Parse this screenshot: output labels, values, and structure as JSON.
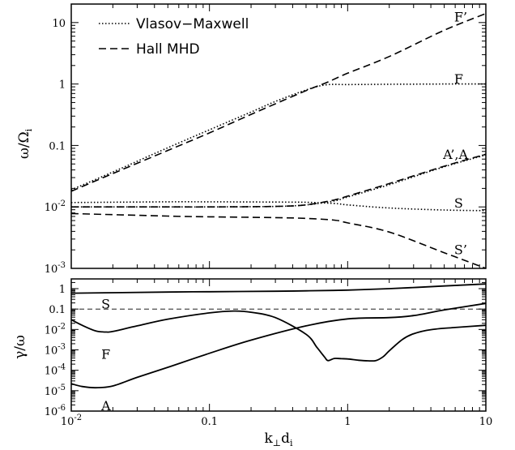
{
  "chart_data": [
    {
      "type": "line",
      "panel": "top",
      "xscale": "log",
      "yscale": "log",
      "xlim": [
        0.01,
        10
      ],
      "ylim": [
        0.001,
        20
      ],
      "ylabel": "ω/Ω",
      "ylabel_sub": "i",
      "yticks": [
        {
          "value": 10,
          "label": "10"
        },
        {
          "value": 1,
          "label": "1"
        },
        {
          "value": 0.1,
          "label": "0.1"
        },
        {
          "value": 0.01,
          "label": "10",
          "exp": "-2"
        },
        {
          "value": 0.001,
          "label": "10",
          "exp": "-3"
        }
      ],
      "legend": {
        "placement": "top-left",
        "entries": [
          {
            "label": "Vlasov−Maxwell",
            "style": "dotted"
          },
          {
            "label": "Hall MHD",
            "style": "dashed"
          }
        ]
      },
      "series": [
        {
          "style": "dotted",
          "x": [
            0.01,
            0.02,
            0.05,
            0.1,
            0.2,
            0.3,
            0.5,
            0.7,
            1,
            2,
            5,
            10
          ],
          "y": [
            0.019,
            0.037,
            0.092,
            0.18,
            0.35,
            0.52,
            0.8,
            0.97,
            0.98,
            0.99,
            1.0,
            1.0
          ]
        },
        {
          "style": "dashed",
          "x": [
            0.01,
            0.02,
            0.05,
            0.1,
            0.2,
            0.5,
            0.7,
            1,
            2,
            5,
            10
          ],
          "y": [
            0.018,
            0.035,
            0.083,
            0.16,
            0.32,
            0.78,
            1.05,
            1.5,
            2.8,
            7.5,
            14
          ]
        },
        {
          "style": "dotted",
          "x": [
            0.01,
            0.05,
            0.1,
            0.3,
            0.5,
            0.8,
            1,
            2,
            5,
            10
          ],
          "y": [
            0.01,
            0.01,
            0.01,
            0.0102,
            0.0108,
            0.0125,
            0.0145,
            0.023,
            0.045,
            0.07
          ]
        },
        {
          "style": "dashed",
          "x": [
            0.01,
            0.05,
            0.1,
            0.3,
            0.5,
            0.8,
            1,
            2,
            5,
            10
          ],
          "y": [
            0.01,
            0.01,
            0.01,
            0.0102,
            0.0108,
            0.013,
            0.015,
            0.024,
            0.046,
            0.072
          ]
        },
        {
          "style": "dotted",
          "x": [
            0.01,
            0.05,
            0.1,
            0.3,
            0.5,
            0.8,
            1,
            2,
            5,
            10
          ],
          "y": [
            0.0118,
            0.0121,
            0.0121,
            0.012,
            0.0119,
            0.0114,
            0.0108,
            0.0096,
            0.0089,
            0.0087
          ]
        },
        {
          "style": "dashed",
          "x": [
            0.01,
            0.05,
            0.1,
            0.3,
            0.5,
            0.8,
            1,
            2,
            5,
            10
          ],
          "y": [
            0.0078,
            0.0071,
            0.0069,
            0.0067,
            0.0065,
            0.0061,
            0.0055,
            0.0039,
            0.0018,
            0.001
          ]
        }
      ],
      "annotations": [
        {
          "text": "F’",
          "x": 5.9,
          "y": 12.5
        },
        {
          "text": "F",
          "x": 5.9,
          "y": 1.22
        },
        {
          "text": "A’,A",
          "x": 4.9,
          "y": 0.072
        },
        {
          "text": "S",
          "x": 5.9,
          "y": 0.0117
        },
        {
          "text": "S’",
          "x": 5.9,
          "y": 0.00205
        }
      ]
    },
    {
      "type": "line",
      "panel": "bottom",
      "xscale": "log",
      "yscale": "log",
      "xlim": [
        0.01,
        10
      ],
      "ylim": [
        1e-06,
        3
      ],
      "xlabel": "k",
      "xlabel_sub1": "⊥",
      "xlabel_mid": "d",
      "xlabel_sub2": "i",
      "ylabel": "γ/ω",
      "xticks": [
        {
          "value": 0.01,
          "label": "10",
          "exp": "-2"
        },
        {
          "value": 0.1,
          "label": "0.1"
        },
        {
          "value": 1,
          "label": "1"
        },
        {
          "value": 10,
          "label": "10"
        }
      ],
      "yticks": [
        {
          "value": 1,
          "label": "1"
        },
        {
          "value": 0.1,
          "label": "0.1"
        },
        {
          "value": 0.01,
          "label": "10",
          "exp": "-2"
        },
        {
          "value": 0.001,
          "label": "10",
          "exp": "-3"
        },
        {
          "value": 0.0001,
          "label": "10",
          "exp": "-4"
        },
        {
          "value": 1e-05,
          "label": "10",
          "exp": "-5"
        },
        {
          "value": 1e-06,
          "label": "10",
          "exp": "-6"
        }
      ],
      "reference_line": {
        "y": 0.1,
        "style": "thin-dashed"
      },
      "series": [
        {
          "name": "S",
          "x": [
            0.01,
            0.05,
            0.1,
            0.3,
            0.5,
            1,
            2,
            5,
            10
          ],
          "y": [
            0.6,
            0.68,
            0.71,
            0.75,
            0.78,
            0.85,
            1.0,
            1.35,
            1.7
          ]
        },
        {
          "name": "F",
          "x": [
            0.01,
            0.012,
            0.015,
            0.018,
            0.02,
            0.03,
            0.05,
            0.1,
            0.15,
            0.2,
            0.3,
            0.5,
            0.6,
            0.68,
            0.72,
            0.8,
            0.9,
            1.0,
            1.2,
            1.4,
            1.6,
            1.8,
            2.0,
            2.5,
            3.0,
            4.0,
            6.0,
            10
          ],
          "y": [
            0.03,
            0.016,
            0.0085,
            0.0075,
            0.008,
            0.015,
            0.032,
            0.065,
            0.08,
            0.07,
            0.038,
            0.0058,
            0.0013,
            0.00045,
            0.0003,
            0.00038,
            0.00037,
            0.00036,
            0.00031,
            0.00029,
            0.0003,
            0.00045,
            0.0009,
            0.0033,
            0.0062,
            0.0098,
            0.0125,
            0.016
          ]
        },
        {
          "name": "A",
          "x": [
            0.01,
            0.012,
            0.015,
            0.02,
            0.03,
            0.05,
            0.1,
            0.2,
            0.5,
            1,
            2,
            3,
            5,
            10
          ],
          "y": [
            2.2e-05,
            1.6e-05,
            1.4e-05,
            1.7e-05,
            4.5e-05,
            0.00014,
            0.00068,
            0.003,
            0.015,
            0.033,
            0.038,
            0.048,
            0.09,
            0.19
          ]
        }
      ],
      "annotations": [
        {
          "text": "S",
          "x": 0.0165,
          "y": 0.18
        },
        {
          "text": "F",
          "x": 0.0165,
          "y": 0.00062
        },
        {
          "text": "A",
          "x": 0.0165,
          "y": 1.9e-06
        }
      ]
    }
  ]
}
